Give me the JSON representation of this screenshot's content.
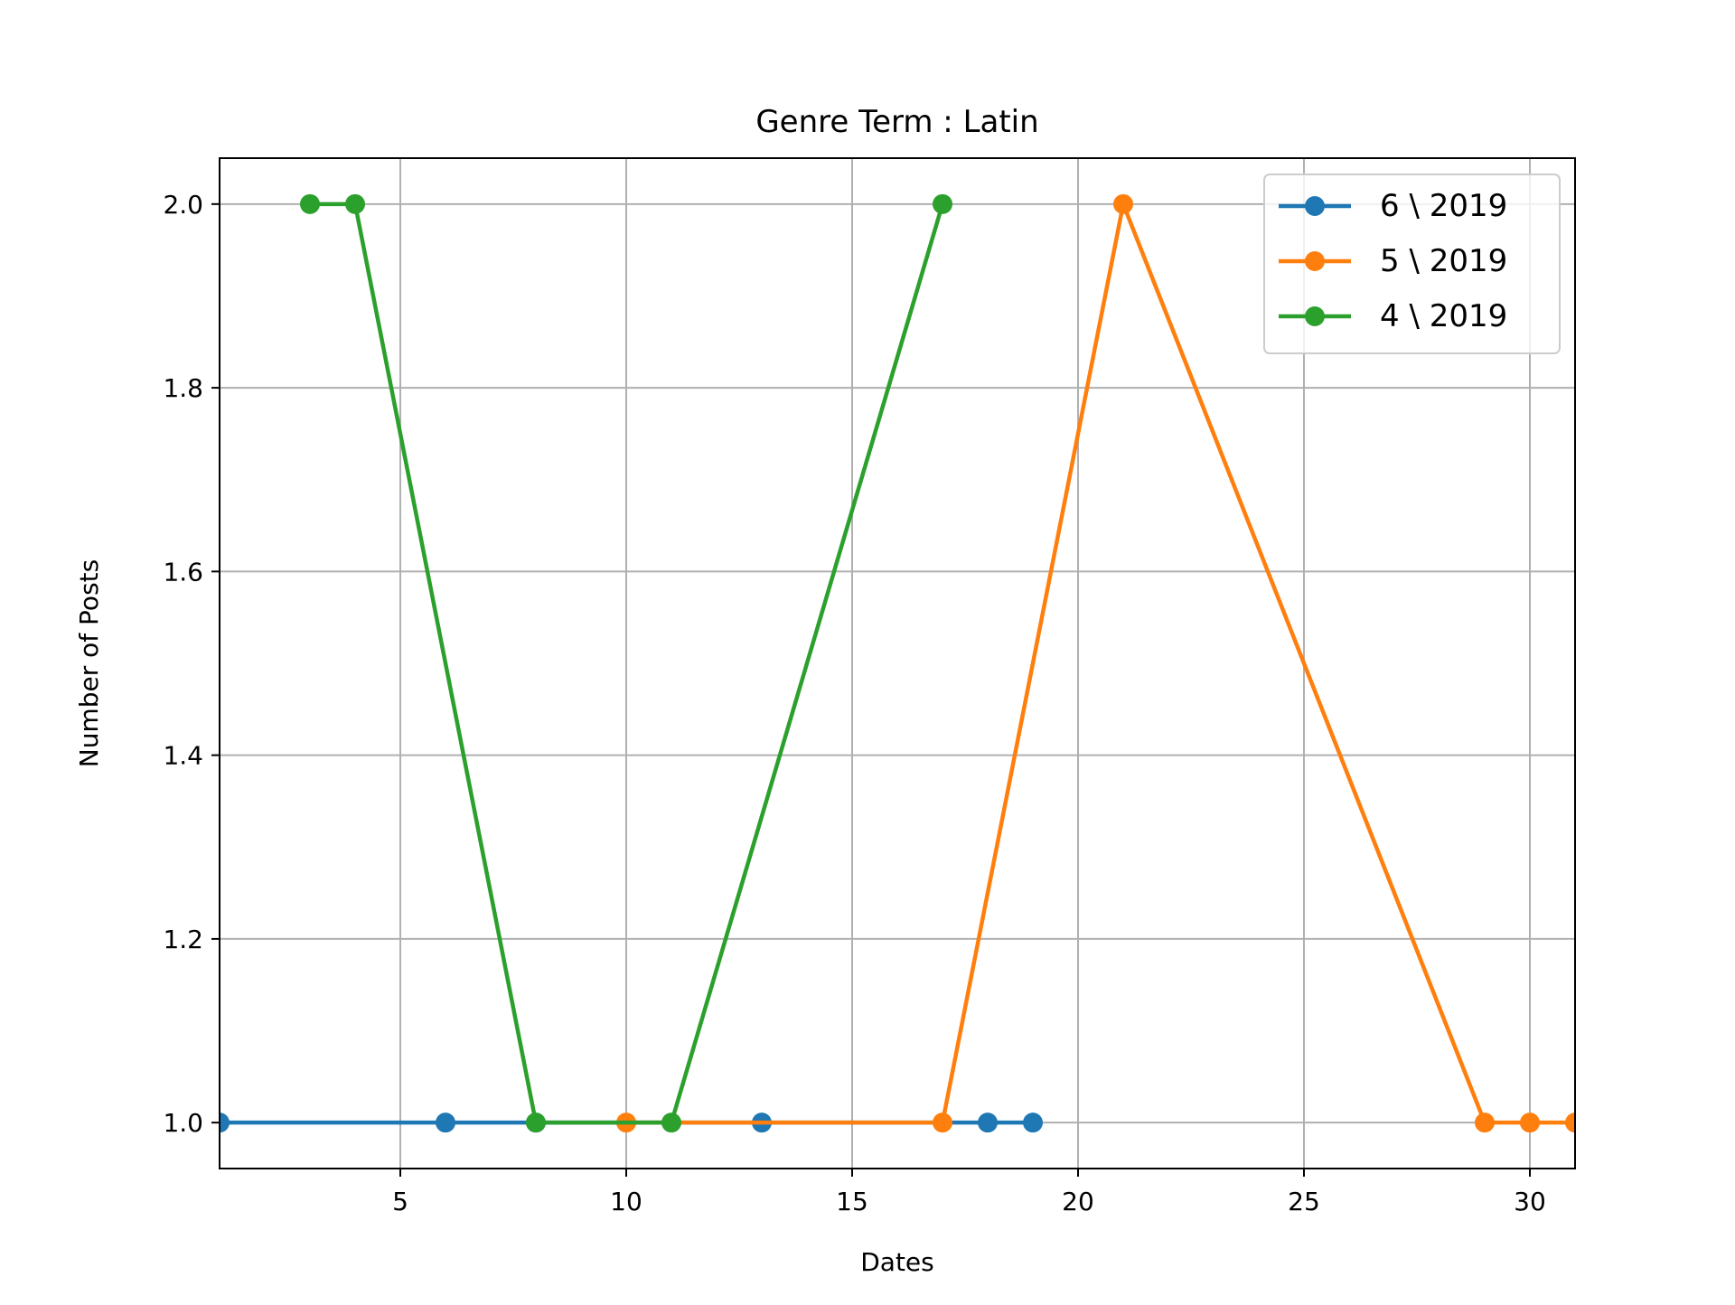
{
  "chart_data": {
    "type": "line",
    "title": "Genre Term : Latin",
    "xlabel": "Dates",
    "ylabel": "Number of Posts",
    "xlim": [
      1,
      31
    ],
    "ylim": [
      0.95,
      2.05
    ],
    "xticks": [
      5,
      10,
      15,
      20,
      25,
      30
    ],
    "xtick_labels": [
      "5",
      "10",
      "15",
      "20",
      "25",
      "30"
    ],
    "yticks": [
      1.0,
      1.2,
      1.4,
      1.6,
      1.8,
      2.0
    ],
    "ytick_labels": [
      "1.0",
      "1.2",
      "1.4",
      "1.6",
      "1.8",
      "2.0"
    ],
    "grid": true,
    "legend_position": "top-right",
    "series": [
      {
        "name": "6 \\ 2019",
        "color": "#1f77b4",
        "x": [
          1,
          6,
          8,
          13,
          18,
          19
        ],
        "y": [
          1,
          1,
          1,
          1,
          1,
          1
        ]
      },
      {
        "name": "5 \\ 2019",
        "color": "#ff7f0e",
        "x": [
          10,
          17,
          21,
          29,
          30,
          31
        ],
        "y": [
          1,
          1,
          2,
          1,
          1,
          1
        ]
      },
      {
        "name": "4 \\ 2019",
        "color": "#2ca02c",
        "x": [
          3,
          4,
          8,
          11,
          17
        ],
        "y": [
          2,
          2,
          1,
          1,
          2
        ]
      }
    ]
  }
}
